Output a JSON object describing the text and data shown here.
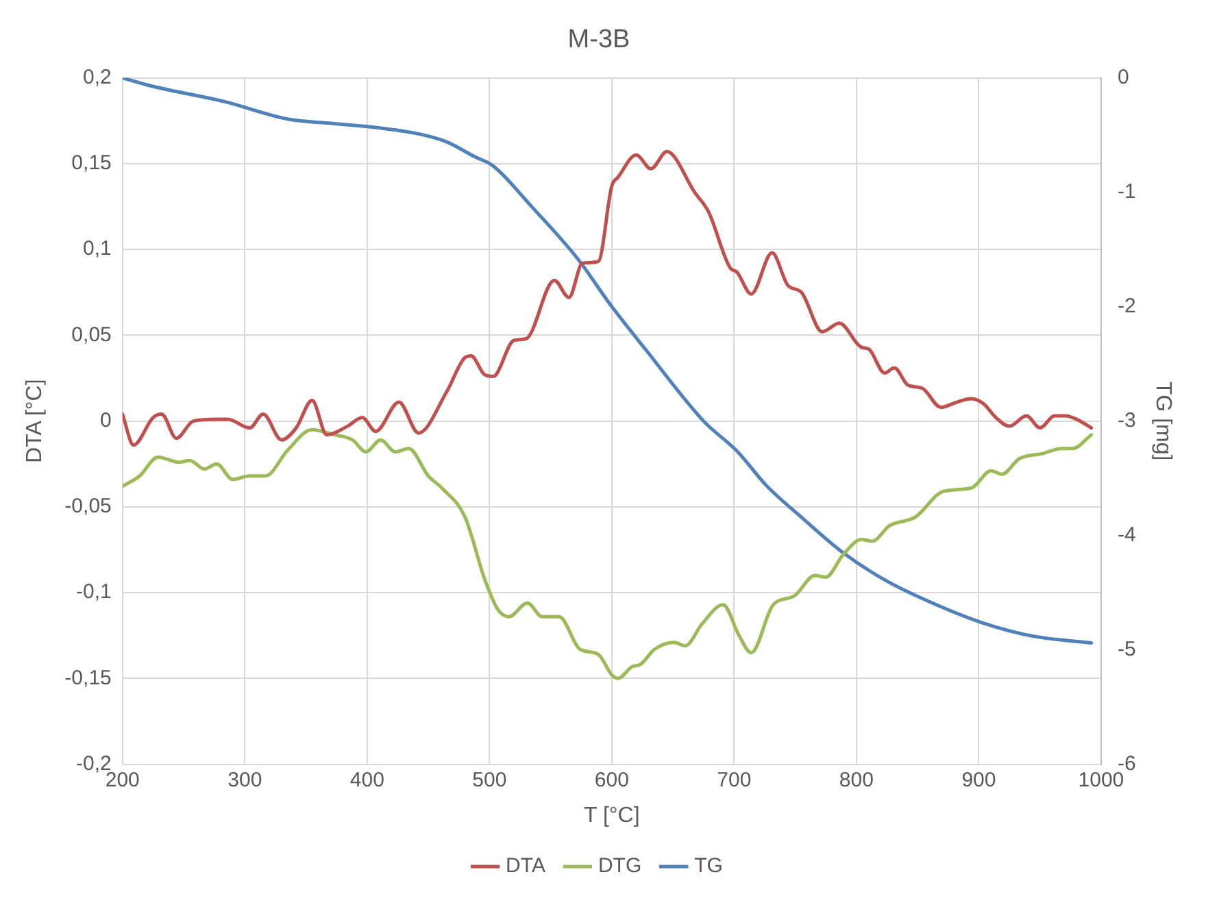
{
  "chart_data": {
    "type": "line",
    "title": "M-3B",
    "xlabel": "T [°C]",
    "ylabel": "DTA [°C]",
    "y2label": "TG [mg]",
    "xlim": [
      200,
      1000
    ],
    "xticks": [
      200,
      300,
      400,
      500,
      600,
      700,
      800,
      900,
      1000
    ],
    "ylim": [
      -0.2,
      0.2
    ],
    "yticks": [
      {
        "value": -0.2,
        "label": "-0,2"
      },
      {
        "value": -0.15,
        "label": "-0,15"
      },
      {
        "value": -0.1,
        "label": "-0,1"
      },
      {
        "value": -0.05,
        "label": "-0,05"
      },
      {
        "value": 0,
        "label": "0"
      },
      {
        "value": 0.05,
        "label": "0,05"
      },
      {
        "value": 0.1,
        "label": "0,1"
      },
      {
        "value": 0.15,
        "label": "0,15"
      },
      {
        "value": 0.2,
        "label": "0,2"
      }
    ],
    "y2lim": [
      -6,
      0
    ],
    "y2ticks": [
      -6,
      -5,
      -4,
      -3,
      -2,
      -1,
      0
    ],
    "grid": true,
    "legend": "bottom",
    "marker": "none",
    "line_style": "solid",
    "series": [
      {
        "name": "DTA",
        "color": "#c0504d",
        "x": [
          200,
          209,
          225,
          232,
          244,
          258,
          277,
          286,
          304,
          315,
          330,
          342,
          355,
          367,
          384,
          396,
          407,
          426,
          442,
          465,
          480,
          485,
          496,
          503,
          520,
          530,
          553,
          565,
          576,
          589,
          600,
          605,
          620,
          632,
          645,
          668,
          679,
          697,
          702,
          714,
          731,
          744,
          755,
          772,
          786,
          804,
          810,
          823,
          831,
          842,
          854,
          869,
          882,
          894,
          904,
          914,
          925,
          939,
          950,
          962,
          971,
          980,
          992
        ],
        "values": [
          0.004,
          -0.014,
          0.002,
          0.004,
          -0.01,
          0,
          0.001,
          0.001,
          -0.004,
          0.004,
          -0.011,
          -0.004,
          0.012,
          -0.008,
          -0.003,
          0.002,
          -0.006,
          0.011,
          -0.007,
          0.017,
          0.037,
          0.038,
          0.027,
          0.026,
          0.047,
          0.048,
          0.082,
          0.072,
          0.092,
          0.093,
          0.137,
          0.142,
          0.155,
          0.147,
          0.157,
          0.133,
          0.122,
          0.089,
          0.087,
          0.074,
          0.098,
          0.079,
          0.075,
          0.052,
          0.057,
          0.043,
          0.042,
          0.028,
          0.031,
          0.021,
          0.019,
          0.008,
          0.011,
          0.013,
          0.01,
          0.002,
          -0.003,
          0.003,
          -0.004,
          0.003,
          0.003,
          0.001,
          -0.004
        ]
      },
      {
        "name": "DTG",
        "color": "#9bbb59",
        "x": [
          200,
          214,
          229,
          246,
          255,
          267,
          277,
          290,
          304,
          317,
          335,
          355,
          373,
          388,
          399,
          411,
          423,
          434,
          450,
          461,
          480,
          496,
          507,
          516,
          531,
          543,
          557,
          574,
          589,
          600,
          605,
          617,
          623,
          635,
          651,
          660,
          674,
          691,
          704,
          714,
          732,
          749,
          766,
          775,
          789,
          804,
          813,
          827,
          848,
          871,
          894,
          910,
          919,
          933,
          952,
          968,
          977,
          992
        ],
        "values": [
          -0.038,
          -0.032,
          -0.021,
          -0.024,
          -0.023,
          -0.028,
          -0.025,
          -0.034,
          -0.032,
          -0.032,
          -0.017,
          -0.005,
          -0.008,
          -0.011,
          -0.018,
          -0.011,
          -0.018,
          -0.016,
          -0.032,
          -0.039,
          -0.056,
          -0.092,
          -0.11,
          -0.114,
          -0.106,
          -0.114,
          -0.114,
          -0.133,
          -0.136,
          -0.148,
          -0.15,
          -0.143,
          -0.142,
          -0.133,
          -0.129,
          -0.131,
          -0.118,
          -0.107,
          -0.125,
          -0.135,
          -0.107,
          -0.102,
          -0.09,
          -0.091,
          -0.078,
          -0.069,
          -0.07,
          -0.061,
          -0.056,
          -0.041,
          -0.039,
          -0.029,
          -0.031,
          -0.022,
          -0.019,
          -0.016,
          -0.016,
          -0.008
        ]
      },
      {
        "name": "TG",
        "color": "#4f81bd",
        "axis": "y2",
        "x": [
          200,
          223,
          284,
          335,
          373,
          404,
          442,
          465,
          488,
          503,
          534,
          572,
          600,
          628,
          675,
          703,
          726,
          756,
          789,
          825,
          864,
          902,
          944,
          992
        ],
        "values": [
          0,
          -0.07,
          -0.21,
          -0.36,
          -0.4,
          -0.43,
          -0.49,
          -0.56,
          -0.69,
          -0.77,
          -1.12,
          -1.58,
          -2.0,
          -2.38,
          -3.0,
          -3.27,
          -3.56,
          -3.85,
          -4.15,
          -4.4,
          -4.6,
          -4.76,
          -4.88,
          -4.94
        ]
      }
    ]
  }
}
